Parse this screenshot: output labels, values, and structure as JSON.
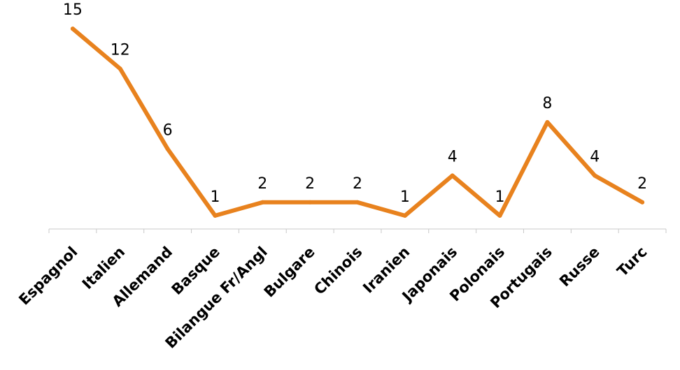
{
  "chart_data": {
    "type": "line",
    "title": "",
    "xlabel": "",
    "ylabel": "",
    "categories": [
      "Espagnol",
      "Italien",
      "Allemand",
      "Basque",
      "Bilangue Fr/Angl",
      "Bulgare",
      "Chinois",
      "Iranien",
      "Japonais",
      "Polonais",
      "Portugais",
      "Russe",
      "Turc"
    ],
    "series": [
      {
        "values": [
          15,
          12,
          6,
          1,
          2,
          2,
          2,
          1,
          4,
          1,
          8,
          4,
          2
        ],
        "color": "#E8821E"
      }
    ],
    "ylim": [
      0,
      16
    ],
    "grid": false,
    "legend": "none",
    "data_labels": true,
    "tick_label_rotation": -45
  }
}
